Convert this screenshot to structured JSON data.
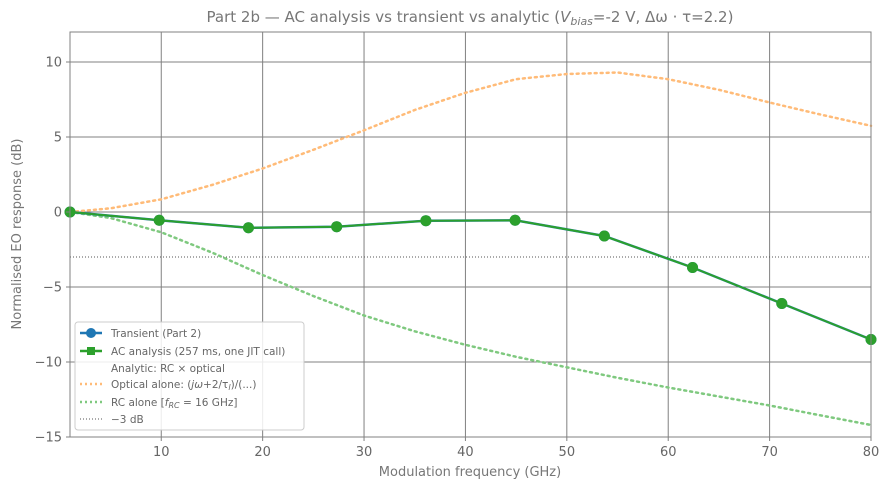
{
  "chart_data": {
    "type": "line",
    "title": "Part 2b — AC analysis vs transient vs analytic  (V_bias=-2 V, Δω·τ=2.2)",
    "title_parts": {
      "prefix": "Part 2b — AC analysis vs transient vs analytic  (",
      "var1": "V",
      "var1_sub": "bias",
      "mid": "=-2 V, Δω · τ=2.2)"
    },
    "xlabel": "Modulation frequency (GHz)",
    "ylabel": "Normalised EO response (dB)",
    "xlim": [
      1,
      80
    ],
    "ylim": [
      -15,
      12
    ],
    "xticks": [
      10,
      20,
      30,
      40,
      50,
      60,
      70,
      80
    ],
    "xtick_labels": [
      "10",
      "20",
      "30",
      "40",
      "50",
      "60",
      "70",
      "80"
    ],
    "yticks": [
      -15,
      -10,
      -5,
      0,
      5,
      10
    ],
    "ytick_labels": [
      "−15",
      "−10",
      "−5",
      "0",
      "5",
      "10"
    ],
    "grid": true,
    "legend_position": "lower-left",
    "series": [
      {
        "name": "Transient (Part 2)",
        "style": "solid-circle",
        "color": "#1f77b4",
        "x": [
          1,
          9.8,
          18.6,
          27.3,
          36.1,
          44.9,
          53.7,
          62.4,
          71.2,
          80
        ],
        "y": [
          0,
          -0.55,
          -1.05,
          -0.98,
          -0.58,
          -0.55,
          -1.6,
          -3.7,
          -6.1,
          -8.5
        ]
      },
      {
        "name": "AC analysis (257 ms, one JIT call)",
        "style": "solid-square",
        "color": "#2ca02c",
        "x": [
          1,
          9.8,
          18.6,
          27.3,
          36.1,
          44.9,
          53.7,
          62.4,
          71.2,
          80
        ],
        "y": [
          0,
          -0.55,
          -1.05,
          -0.98,
          -0.58,
          -0.55,
          -1.6,
          -3.7,
          -6.1,
          -8.5
        ]
      },
      {
        "name": "Analytic: RC × optical",
        "style": "none",
        "color": "#ffffff",
        "x": [],
        "y": []
      },
      {
        "name": "Optical alone: (jω+2/τ_l)/(...)",
        "legend_parts": {
          "prefix": "Optical alone: (",
          "jw": "jω",
          "mid": "+2/τ",
          "sub": "l",
          "suffix": ")/(...)"
        },
        "style": "dotted",
        "color": "#ffbb78",
        "x": [
          1,
          5,
          10,
          15,
          20,
          25,
          30,
          35,
          40,
          45,
          50,
          55,
          60,
          65,
          70,
          75,
          80
        ],
        "y": [
          0,
          0.25,
          0.85,
          1.8,
          2.9,
          4.15,
          5.45,
          6.8,
          7.95,
          8.85,
          9.2,
          9.3,
          8.85,
          8.15,
          7.3,
          6.5,
          5.75
        ]
      },
      {
        "name": "RC alone  [f_RC = 16 GHz]",
        "legend_parts": {
          "prefix": "RC alone  [",
          "f": "f",
          "sub": "RC",
          "suffix": " = 16 GHz]"
        },
        "style": "dotted",
        "color": "#7fc97f",
        "x": [
          1,
          5,
          10,
          15,
          20,
          25,
          30,
          35,
          40,
          45,
          50,
          55,
          60,
          65,
          70,
          75,
          80
        ],
        "y": [
          0,
          -0.4,
          -1.35,
          -2.7,
          -4.2,
          -5.6,
          -6.9,
          -7.95,
          -8.85,
          -9.65,
          -10.35,
          -11.05,
          -11.7,
          -12.3,
          -12.9,
          -13.55,
          -14.2
        ]
      },
      {
        "name": "−3 dB",
        "style": "dotted-thin",
        "color": "#555555",
        "x": [
          1,
          80
        ],
        "y": [
          -3,
          -3
        ]
      }
    ]
  }
}
